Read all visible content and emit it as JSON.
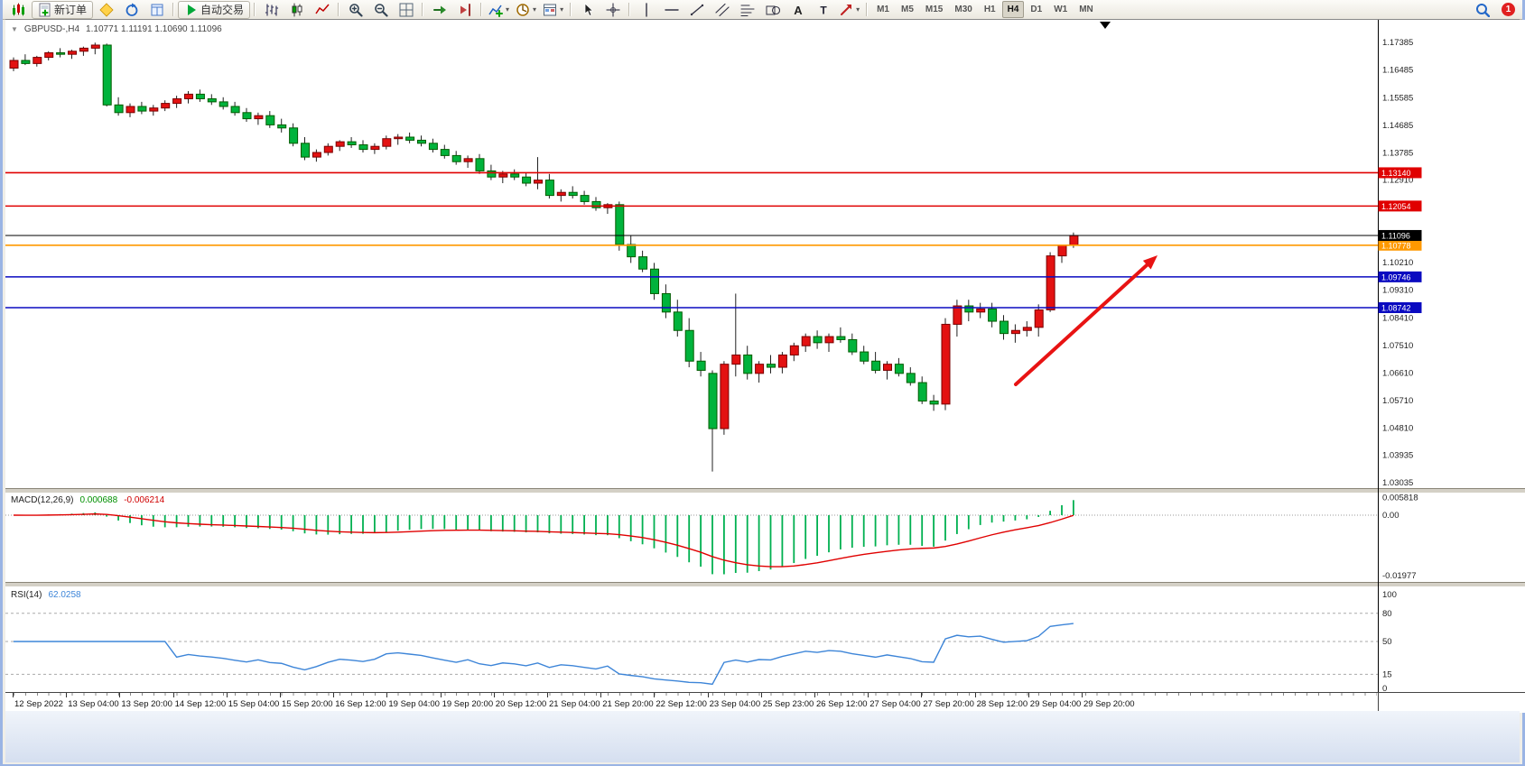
{
  "toolbar": {
    "new_order_label": "新订单",
    "autotrading_label": "自动交易",
    "groups": [
      {
        "icons": [
          "new-chart-icon"
        ]
      },
      {
        "text_button": "new_order",
        "icon": "new-order-doc-icon"
      },
      {
        "icons": [
          "metaeditor-icon",
          "refresh-icon",
          "data-window-icon"
        ]
      },
      {
        "sep": true
      },
      {
        "text_button": "autotrading",
        "icon": "autotrading-icon"
      },
      {
        "sep": true
      },
      {
        "icons": [
          "bar-chart-icon",
          "candlestick-chart-icon",
          "line-chart-icon"
        ]
      },
      {
        "sep": true
      },
      {
        "icons": [
          "zoom-in-icon",
          "zoom-out-icon",
          "tile-windows-icon"
        ]
      },
      {
        "sep": true
      },
      {
        "icons": [
          "auto-scroll-icon",
          "chart-shift-icon"
        ]
      },
      {
        "sep": true
      },
      {
        "icons": [
          "indicators-icon",
          "periods-icon",
          "templates-icon"
        ]
      },
      {
        "sep": true
      },
      {
        "icons": [
          "cursor-icon",
          "crosshair-icon"
        ]
      },
      {
        "sep": true
      },
      {
        "icons": [
          "vertical-line-icon",
          "horizontal-line-icon",
          "trendline-icon",
          "channel-icon",
          "fibonacci-icon",
          "shapes-icon",
          "text-icon",
          "label-icon",
          "arrows-icon"
        ]
      },
      {
        "sep": true
      },
      {
        "timeframes": true
      }
    ],
    "timeframes": [
      "M1",
      "M5",
      "M15",
      "M30",
      "H1",
      "H4",
      "D1",
      "W1",
      "MN"
    ],
    "active_timeframe": "H4",
    "right_icons": [
      "search-icon"
    ],
    "notification_count": "1"
  },
  "chart": {
    "symbol_period": "GBPUSD-,H4",
    "quote_ohlc": "1.10771 1.11191 1.10690 1.11096",
    "one_click_glyph": "▼",
    "price_axis_labels": [
      "1.17385",
      "1.16485",
      "1.15585",
      "1.14685",
      "1.13785",
      "1.12910",
      "1.10210",
      "1.09310",
      "1.08410",
      "1.07510",
      "1.06610",
      "1.05710",
      "1.04810",
      "1.03935",
      "1.03035"
    ],
    "hlines": [
      {
        "label": "1.13140",
        "v": 1.1314,
        "color": "#e00000"
      },
      {
        "label": "1.12054",
        "v": 1.12054,
        "color": "#e00000"
      },
      {
        "label": "1.10778",
        "v": 1.10778,
        "color": "#ff9900"
      },
      {
        "label": "1.09746",
        "v": 1.09746,
        "color": "#0a0ac0"
      },
      {
        "label": "1.08742",
        "v": 1.08742,
        "color": "#0a0ac0"
      }
    ],
    "current_price": {
      "label": "1.11096",
      "v": 1.11096,
      "color": "#000000"
    },
    "arrow_color": "#e81313",
    "time_axis_labels": [
      "12 Sep 2022",
      "13 Sep 04:00",
      "13 Sep 20:00",
      "14 Sep 12:00",
      "15 Sep 04:00",
      "15 Sep 20:00",
      "16 Sep 12:00",
      "19 Sep 04:00",
      "19 Sep 20:00",
      "20 Sep 12:00",
      "21 Sep 04:00",
      "21 Sep 20:00",
      "22 Sep 12:00",
      "23 Sep 04:00",
      "25 Sep 23:00",
      "26 Sep 12:00",
      "27 Sep 04:00",
      "27 Sep 20:00",
      "28 Sep 12:00",
      "29 Sep 04:00",
      "29 Sep 20:00"
    ]
  },
  "macd": {
    "label": "MACD(12,26,9)",
    "value_main": "0.000688",
    "value_signal": "-0.006214",
    "axis": [
      {
        "label": "0.005818",
        "v": 0.005818
      },
      {
        "label": "0.00",
        "v": 0
      },
      {
        "label": "-0.01977",
        "v": -0.01977
      }
    ],
    "params": {
      "fast": 12,
      "slow": 26,
      "signal": 9
    },
    "histogram_color": "#00b050",
    "signal_color": "#e00000"
  },
  "rsi": {
    "label": "RSI(14)",
    "value": "62.0258",
    "axis": [
      {
        "label": "100",
        "v": 100
      },
      {
        "label": "80",
        "v": 80
      },
      {
        "label": "50",
        "v": 50
      },
      {
        "label": "15",
        "v": 15
      },
      {
        "label": "0",
        "v": 0
      }
    ],
    "levels": [
      80,
      50,
      15
    ],
    "params": {
      "period": 14
    },
    "line_color": "#3d85d8"
  },
  "chart_data": {
    "type": "candlestick",
    "symbol": "GBPUSD-",
    "timeframe": "H4",
    "ohlc_current": {
      "open": 1.10771,
      "high": 1.11191,
      "low": 1.1069,
      "close": 1.11096
    },
    "bull_color": "#e31212",
    "bear_color": "#00b33c",
    "candles": [
      [
        1.1655,
        1.169,
        1.1645,
        1.168
      ],
      [
        1.168,
        1.17,
        1.1665,
        1.167
      ],
      [
        1.167,
        1.1695,
        1.166,
        1.169
      ],
      [
        1.169,
        1.171,
        1.168,
        1.1705
      ],
      [
        1.1705,
        1.172,
        1.169,
        1.17
      ],
      [
        1.17,
        1.1715,
        1.1685,
        1.171
      ],
      [
        1.171,
        1.1725,
        1.1695,
        1.172
      ],
      [
        1.172,
        1.1738,
        1.17,
        1.173
      ],
      [
        1.173,
        1.1735,
        1.153,
        1.1535
      ],
      [
        1.1535,
        1.156,
        1.15,
        1.151
      ],
      [
        1.151,
        1.154,
        1.1495,
        1.153
      ],
      [
        1.153,
        1.1545,
        1.1505,
        1.1515
      ],
      [
        1.1515,
        1.1535,
        1.15,
        1.1525
      ],
      [
        1.1525,
        1.155,
        1.1515,
        1.154
      ],
      [
        1.154,
        1.1565,
        1.1525,
        1.1555
      ],
      [
        1.1555,
        1.158,
        1.154,
        1.157
      ],
      [
        1.157,
        1.1585,
        1.1545,
        1.1555
      ],
      [
        1.1555,
        1.157,
        1.1535,
        1.1545
      ],
      [
        1.1545,
        1.156,
        1.152,
        1.153
      ],
      [
        1.153,
        1.1545,
        1.15,
        1.151
      ],
      [
        1.151,
        1.1525,
        1.148,
        1.149
      ],
      [
        1.149,
        1.151,
        1.147,
        1.15
      ],
      [
        1.15,
        1.1515,
        1.146,
        1.147
      ],
      [
        1.147,
        1.149,
        1.1445,
        1.146
      ],
      [
        1.146,
        1.1475,
        1.14,
        1.141
      ],
      [
        1.141,
        1.143,
        1.1355,
        1.1365
      ],
      [
        1.1365,
        1.139,
        1.135,
        1.138
      ],
      [
        1.138,
        1.141,
        1.137,
        1.14
      ],
      [
        1.14,
        1.142,
        1.1385,
        1.1415
      ],
      [
        1.1415,
        1.143,
        1.1395,
        1.1405
      ],
      [
        1.1405,
        1.142,
        1.138,
        1.139
      ],
      [
        1.139,
        1.141,
        1.1375,
        1.14
      ],
      [
        1.14,
        1.1435,
        1.139,
        1.1425
      ],
      [
        1.1425,
        1.144,
        1.1405,
        1.143
      ],
      [
        1.143,
        1.1445,
        1.141,
        1.142
      ],
      [
        1.142,
        1.1435,
        1.14,
        1.141
      ],
      [
        1.141,
        1.1425,
        1.138,
        1.139
      ],
      [
        1.139,
        1.1405,
        1.136,
        1.137
      ],
      [
        1.137,
        1.1385,
        1.134,
        1.135
      ],
      [
        1.135,
        1.137,
        1.133,
        1.136
      ],
      [
        1.136,
        1.1375,
        1.131,
        1.132
      ],
      [
        1.132,
        1.134,
        1.129,
        1.13
      ],
      [
        1.13,
        1.132,
        1.128,
        1.131
      ],
      [
        1.131,
        1.1325,
        1.129,
        1.13
      ],
      [
        1.13,
        1.1315,
        1.127,
        1.128
      ],
      [
        1.128,
        1.1365,
        1.126,
        1.129
      ],
      [
        1.129,
        1.131,
        1.123,
        1.124
      ],
      [
        1.124,
        1.126,
        1.122,
        1.125
      ],
      [
        1.125,
        1.127,
        1.123,
        1.124
      ],
      [
        1.124,
        1.1255,
        1.121,
        1.122
      ],
      [
        1.122,
        1.1235,
        1.119,
        1.12
      ],
      [
        1.12,
        1.1215,
        1.118,
        1.121
      ],
      [
        1.121,
        1.122,
        1.106,
        1.108
      ],
      [
        1.108,
        1.111,
        1.102,
        1.104
      ],
      [
        1.104,
        1.106,
        1.099,
        1.1
      ],
      [
        1.1,
        1.102,
        1.09,
        1.092
      ],
      [
        1.092,
        1.095,
        1.084,
        1.086
      ],
      [
        1.086,
        1.09,
        1.078,
        1.08
      ],
      [
        1.08,
        1.084,
        1.068,
        1.07
      ],
      [
        1.07,
        1.073,
        1.065,
        1.067
      ],
      [
        1.066,
        1.067,
        1.034,
        1.048
      ],
      [
        1.048,
        1.07,
        1.046,
        1.069
      ],
      [
        1.069,
        1.092,
        1.065,
        1.072
      ],
      [
        1.072,
        1.075,
        1.064,
        1.066
      ],
      [
        1.066,
        1.07,
        1.063,
        1.069
      ],
      [
        1.069,
        1.072,
        1.066,
        1.068
      ],
      [
        1.068,
        1.073,
        1.066,
        1.072
      ],
      [
        1.072,
        1.076,
        1.07,
        1.075
      ],
      [
        1.075,
        1.079,
        1.073,
        1.078
      ],
      [
        1.078,
        1.08,
        1.074,
        1.076
      ],
      [
        1.076,
        1.079,
        1.073,
        1.078
      ],
      [
        1.078,
        1.081,
        1.076,
        1.077
      ],
      [
        1.077,
        1.079,
        1.072,
        1.073
      ],
      [
        1.073,
        1.075,
        1.069,
        1.07
      ],
      [
        1.07,
        1.073,
        1.066,
        1.067
      ],
      [
        1.067,
        1.07,
        1.064,
        1.069
      ],
      [
        1.069,
        1.071,
        1.065,
        1.066
      ],
      [
        1.066,
        1.068,
        1.062,
        1.063
      ],
      [
        1.063,
        1.065,
        1.056,
        1.057
      ],
      [
        1.057,
        1.059,
        1.0538,
        1.056
      ],
      [
        1.056,
        1.084,
        1.054,
        1.082
      ],
      [
        1.082,
        1.09,
        1.078,
        1.088
      ],
      [
        1.088,
        1.09,
        1.083,
        1.086
      ],
      [
        1.086,
        1.089,
        1.084,
        1.087
      ],
      [
        1.087,
        1.089,
        1.081,
        1.083
      ],
      [
        1.083,
        1.085,
        1.077,
        1.079
      ],
      [
        1.079,
        1.082,
        1.076,
        1.08
      ],
      [
        1.08,
        1.083,
        1.078,
        1.081
      ],
      [
        1.081,
        1.0885,
        1.078,
        1.0867
      ],
      [
        1.0867,
        1.1055,
        1.086,
        1.1043
      ],
      [
        1.1043,
        1.108,
        1.102,
        1.10771
      ],
      [
        1.10771,
        1.11191,
        1.1069,
        1.11096
      ]
    ]
  }
}
